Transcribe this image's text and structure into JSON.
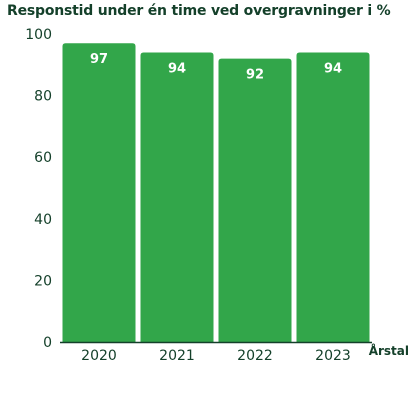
{
  "chart_data": {
    "type": "bar",
    "title": "Responstid under én time ved overgravninger i %",
    "categories": [
      "2020",
      "2021",
      "2022",
      "2023"
    ],
    "values": [
      97,
      94,
      92,
      94
    ],
    "data_labels": [
      "97",
      "94",
      "92",
      "94"
    ],
    "xlabel": "Årstal",
    "ylabel": "",
    "ylim": [
      0,
      100
    ],
    "yticks": [
      0,
      20,
      40,
      60,
      80,
      100
    ],
    "ytick_labels": [
      "0",
      "20",
      "40",
      "60",
      "80",
      "100"
    ],
    "grid": false,
    "legend": "none",
    "colors": {
      "bar": "#32a64a",
      "text": "#14402a",
      "axis": "#14402a",
      "bar_label": "#ffffff"
    }
  }
}
